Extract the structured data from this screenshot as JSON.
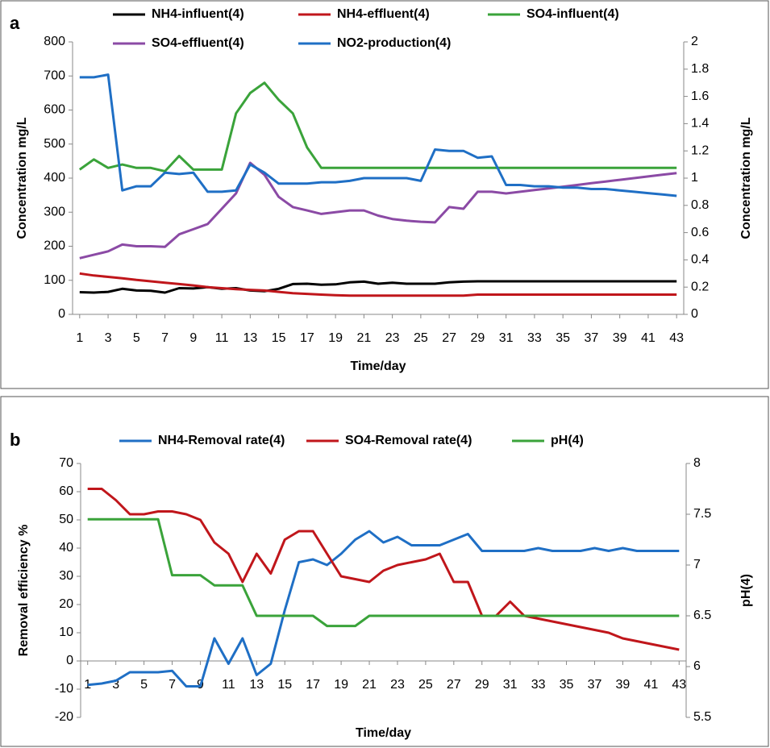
{
  "chart_data": [
    {
      "type": "line",
      "panel_label": "a",
      "xlabel": "Time/day",
      "ylabel": "Concentration mg/L",
      "y2label": "Concentration mg/L",
      "x": [
        1,
        2,
        3,
        4,
        5,
        6,
        7,
        8,
        9,
        10,
        11,
        12,
        13,
        14,
        15,
        16,
        17,
        18,
        19,
        20,
        21,
        22,
        23,
        24,
        25,
        26,
        27,
        28,
        29,
        30,
        31,
        32,
        33,
        34,
        35,
        36,
        37,
        38,
        39,
        40,
        41,
        42,
        43
      ],
      "xlim": [
        0.5,
        43.5
      ],
      "xticks": [
        1,
        3,
        5,
        7,
        9,
        11,
        13,
        15,
        17,
        19,
        21,
        23,
        25,
        27,
        29,
        31,
        33,
        35,
        37,
        39,
        41,
        43
      ],
      "ylim": [
        0,
        800
      ],
      "yticks": [
        0,
        100,
        200,
        300,
        400,
        500,
        600,
        700,
        800
      ],
      "y2lim": [
        0,
        2
      ],
      "y2ticks": [
        0,
        0.2,
        0.4,
        0.6,
        0.8,
        1,
        1.2,
        1.4,
        1.6,
        1.8,
        2
      ],
      "legend": "top",
      "series": [
        {
          "name": "NH4-influent(4)",
          "color": "#000000",
          "values": [
            65,
            64,
            66,
            75,
            70,
            69,
            64,
            77,
            76,
            80,
            75,
            77,
            70,
            68,
            75,
            89,
            90,
            87,
            88,
            94,
            96,
            90,
            93,
            90,
            90,
            90,
            94,
            96,
            97,
            97,
            97,
            97,
            97,
            97,
            97,
            97,
            97,
            97,
            97,
            97,
            97,
            97,
            97
          ]
        },
        {
          "name": "NH4-effluent(4)",
          "color": "#c0161b",
          "values": [
            120,
            114,
            110,
            106,
            101,
            97,
            93,
            89,
            85,
            80,
            77,
            74,
            72,
            70,
            66,
            62,
            60,
            58,
            56,
            55,
            55,
            55,
            55,
            55,
            55,
            55,
            55,
            55,
            58,
            58,
            58,
            58,
            58,
            58,
            58,
            58,
            58,
            58,
            58,
            58,
            58,
            58,
            58
          ]
        },
        {
          "name": "SO4-influent(4)",
          "color": "#3aa33a",
          "values": [
            425,
            455,
            430,
            440,
            430,
            430,
            420,
            465,
            425,
            425,
            425,
            590,
            650,
            680,
            630,
            590,
            490,
            430,
            430,
            430,
            430,
            430,
            430,
            430,
            430,
            430,
            430,
            430,
            430,
            430,
            430,
            430,
            430,
            430,
            430,
            430,
            430,
            430,
            430,
            430,
            430,
            430,
            430
          ]
        },
        {
          "name": "SO4-effluent(4)",
          "color": "#8b4aa5",
          "values": [
            165,
            175,
            185,
            205,
            200,
            200,
            198,
            235,
            250,
            265,
            310,
            355,
            445,
            410,
            345,
            315,
            305,
            295,
            300,
            305,
            305,
            290,
            280,
            275,
            272,
            270,
            315,
            310,
            360,
            360,
            355,
            360,
            365,
            370,
            375,
            380,
            385,
            390,
            395,
            400,
            405,
            410,
            415
          ]
        },
        {
          "name": "NO2-production(4)",
          "color": "#1f6fc5",
          "axis": "y2",
          "values": [
            1.74,
            1.74,
            1.76,
            0.91,
            0.94,
            0.94,
            1.04,
            1.03,
            1.04,
            0.9,
            0.9,
            0.91,
            1.1,
            1.04,
            0.96,
            0.96,
            0.96,
            0.97,
            0.97,
            0.98,
            1.0,
            1.0,
            1.0,
            1.0,
            0.98,
            1.21,
            1.2,
            1.2,
            1.15,
            1.16,
            0.95,
            0.95,
            0.94,
            0.94,
            0.93,
            0.93,
            0.92,
            0.92,
            0.91,
            0.9,
            0.89,
            0.88,
            0.87
          ]
        }
      ]
    },
    {
      "type": "line",
      "panel_label": "b",
      "xlabel": "Time/day",
      "ylabel": "Removal efficiency %",
      "y2label": "pH(4)",
      "x": [
        1,
        2,
        3,
        4,
        5,
        6,
        7,
        8,
        9,
        10,
        11,
        12,
        13,
        14,
        15,
        16,
        17,
        18,
        19,
        20,
        21,
        22,
        23,
        24,
        25,
        26,
        27,
        28,
        29,
        30,
        31,
        32,
        33,
        34,
        35,
        36,
        37,
        38,
        39,
        40,
        41,
        42,
        43
      ],
      "xlim": [
        0.5,
        43.5
      ],
      "xticks": [
        1,
        3,
        5,
        7,
        9,
        11,
        13,
        15,
        17,
        19,
        21,
        23,
        25,
        27,
        29,
        31,
        33,
        35,
        37,
        39,
        41,
        43
      ],
      "ylim": [
        -20,
        70
      ],
      "yticks": [
        -20,
        -10,
        0,
        10,
        20,
        30,
        40,
        50,
        60,
        70
      ],
      "y2lim": [
        5.5,
        8
      ],
      "y2ticks": [
        5.5,
        6,
        6.5,
        7,
        7.5,
        8
      ],
      "legend": "top",
      "series": [
        {
          "name": "NH4-Removal rate(4)",
          "color": "#1f6fc5",
          "values": [
            -8.5,
            -8,
            -7,
            -4,
            -4,
            -4,
            -3.5,
            -9,
            -9,
            8,
            -1,
            8,
            -5,
            -1,
            18,
            35,
            36,
            34,
            38,
            43,
            46,
            42,
            44,
            41,
            41,
            41,
            43,
            45,
            39,
            39,
            39,
            39,
            40,
            39,
            39,
            39,
            40,
            39,
            40,
            39,
            39,
            39,
            39
          ]
        },
        {
          "name": "SO4-Removal rate(4)",
          "color": "#c0161b",
          "values": [
            61,
            61,
            57,
            52,
            52,
            53,
            53,
            52,
            50,
            42,
            38,
            28,
            38,
            31,
            43,
            46,
            46,
            38,
            30,
            29,
            28,
            32,
            34,
            35,
            36,
            38,
            28,
            28,
            16,
            16,
            21,
            16,
            15,
            14,
            13,
            12,
            11,
            10,
            8,
            7,
            6,
            5,
            4
          ]
        },
        {
          "name": "pH(4)",
          "color": "#3aa33a",
          "axis": "y2",
          "values": [
            7.45,
            7.45,
            7.45,
            7.45,
            7.45,
            7.45,
            6.9,
            6.9,
            6.9,
            6.8,
            6.8,
            6.8,
            6.5,
            6.5,
            6.5,
            6.5,
            6.5,
            6.4,
            6.4,
            6.4,
            6.5,
            6.5,
            6.5,
            6.5,
            6.5,
            6.5,
            6.5,
            6.5,
            6.5,
            6.5,
            6.5,
            6.5,
            6.5,
            6.5,
            6.5,
            6.5,
            6.5,
            6.5,
            6.5,
            6.5,
            6.5,
            6.5,
            6.5
          ]
        }
      ]
    }
  ]
}
